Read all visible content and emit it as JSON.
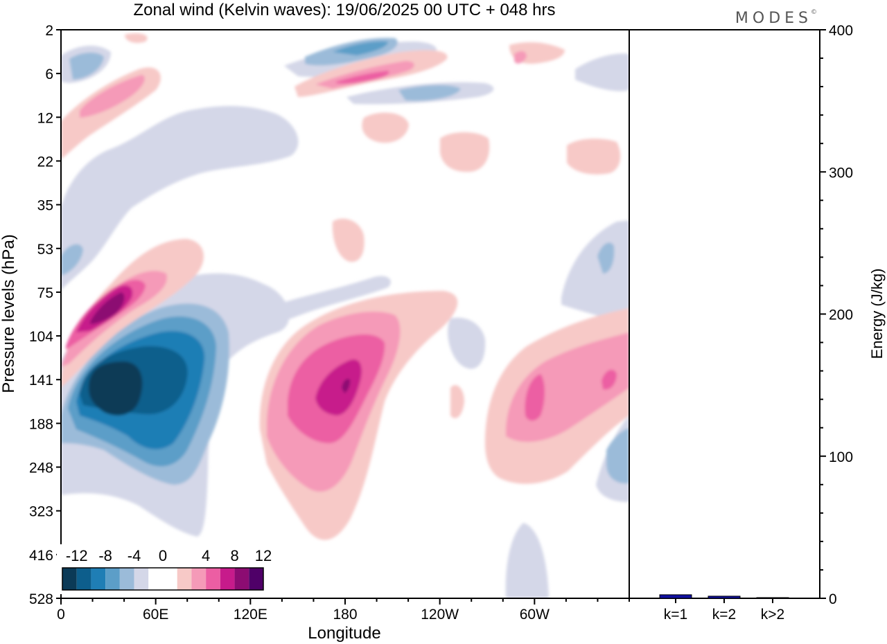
{
  "title": "Zonal wind (Kelvin waves):  19/06/2025  00 UTC  + 048 hrs",
  "logo": "MODES",
  "logo_mark": "©",
  "chart_data": [
    {
      "type": "heatmap",
      "xlabel": "Longitude",
      "ylabel": "Pressure levels (hPa)",
      "x_ticks": [
        "0",
        "60E",
        "120E",
        "180",
        "120W",
        "60W"
      ],
      "x_tick_lon": [
        0,
        60,
        120,
        180,
        240,
        300
      ],
      "x_range": [
        0,
        360
      ],
      "y_ticks": [
        "2",
        "6",
        "12",
        "22",
        "35",
        "53",
        "75",
        "104",
        "141",
        "188",
        "248",
        "323",
        "416",
        "528"
      ],
      "y_scale": "categorical pressure levels, top to bottom",
      "colorbar": {
        "labels": [
          "-12",
          "-8",
          "-4",
          "0",
          "4",
          "8",
          "12"
        ],
        "colors": [
          "#0b3a57",
          "#0d5e8c",
          "#1f7eb5",
          "#5c9ec8",
          "#9bbbd9",
          "#d4d7e8",
          "#ffffff",
          "#ffffff",
          "#f7c9c7",
          "#f59ab8",
          "#ec5ea3",
          "#c71b8b",
          "#8c0c72",
          "#4f0068"
        ]
      },
      "features": [
        {
          "name": "negative-core-upper",
          "lon": 12,
          "level": "6",
          "value": -8
        },
        {
          "name": "negative-streak-upper",
          "lon": 180,
          "level": "2",
          "value": -8
        },
        {
          "name": "positive-band-upper",
          "lon": 180,
          "level": "6",
          "value": 10
        },
        {
          "name": "positive-tilted-band",
          "lon": 35,
          "level": "75",
          "value": 14
        },
        {
          "name": "negative-core-lower",
          "lon": 35,
          "level": "141",
          "value": -14
        },
        {
          "name": "positive-core-dateline",
          "lon": 175,
          "level": "141",
          "value": 12
        },
        {
          "name": "positive-core-east",
          "lon": 285,
          "level": "141",
          "value": 10
        },
        {
          "name": "negative-patch-east",
          "lon": 350,
          "level": "248",
          "value": -6
        }
      ]
    },
    {
      "type": "bar",
      "ylabel": "Energy (J/kg)",
      "categories": [
        "k=1",
        "k=2",
        "k>2"
      ],
      "values": [
        2.5,
        1.5,
        0.5
      ],
      "ylim": [
        0,
        400
      ],
      "y_ticks": [
        0,
        100,
        200,
        300,
        400
      ],
      "bar_color": "#1010a0"
    }
  ]
}
